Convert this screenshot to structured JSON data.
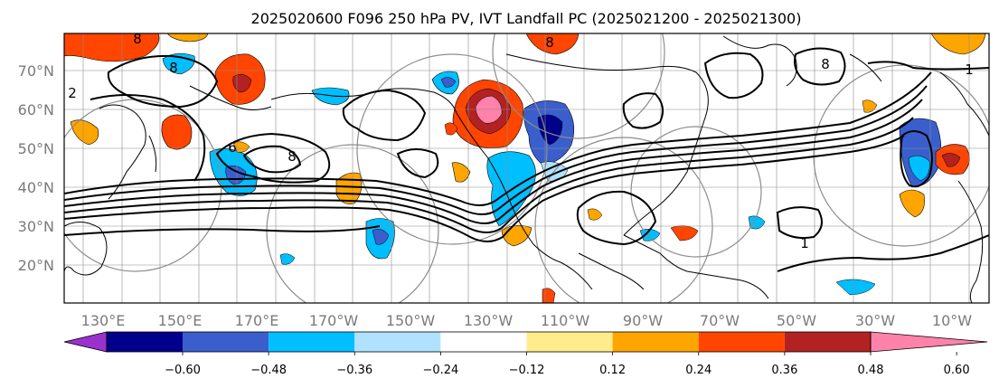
{
  "title": "2025020600 F096 250 hPa PV, IVT Landfall PC (2025021200 - 2025021300)",
  "map": {
    "lat_labels": [
      "70°N",
      "60°N",
      "50°N",
      "40°N",
      "30°N",
      "20°N"
    ],
    "lon_labels": [
      "130°E",
      "150°E",
      "170°E",
      "170°W",
      "150°W",
      "130°W",
      "110°W",
      "90°W",
      "70°W",
      "50°W",
      "30°W",
      "10°W"
    ],
    "pv_contour_labels": [
      "8",
      "8",
      "8",
      "8",
      "8",
      "6",
      "1",
      "1",
      "2"
    ]
  },
  "colorbar": {
    "tick_labels": [
      "−0.60",
      "−0.48",
      "−0.36",
      "−0.24",
      "−0.12",
      "0.12",
      "0.24",
      "0.36",
      "0.48",
      "0.60"
    ],
    "colors": {
      "under": "#9932cc",
      "bins": [
        "#00008b",
        "#3a5fcd",
        "#00bfff",
        "#b0e2ff",
        "#ffffff",
        "#ffec8b",
        "#ffa500",
        "#ff4500",
        "#b22222"
      ],
      "over": "#ff82ab"
    }
  },
  "colors": {
    "neg_dark": "#00008b",
    "neg_mid": "#3a5fcd",
    "neg_light": "#00bfff",
    "neg_pale": "#b0e2ff",
    "pos_pale": "#ffec8b",
    "pos_mid": "#ffa500",
    "pos_strong": "#ff4500",
    "pos_dark": "#b22222",
    "pos_extreme": "#ff82ab",
    "grid": "#8c8c8c"
  }
}
